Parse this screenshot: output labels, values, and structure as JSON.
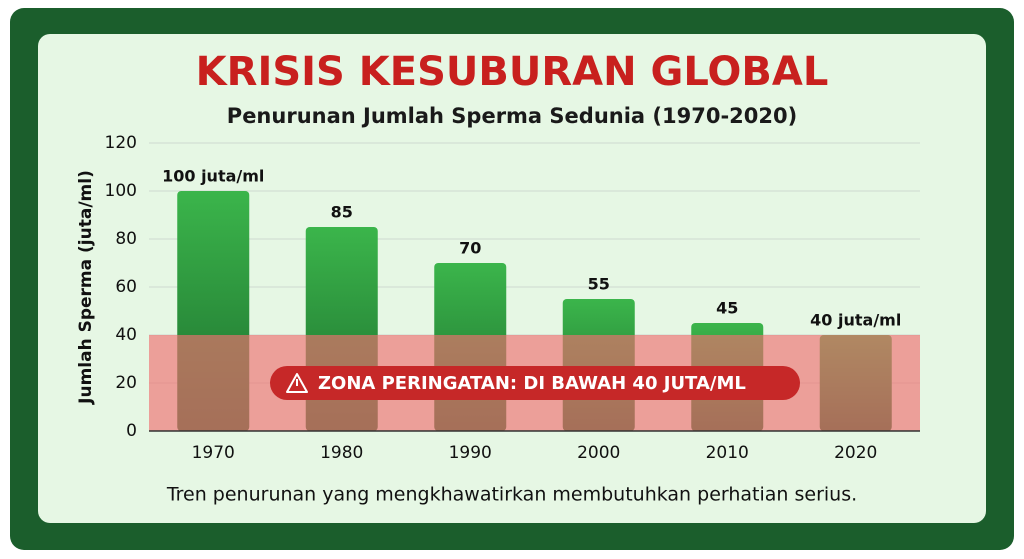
{
  "chart_data": {
    "type": "bar",
    "title": "KRISIS KESUBURAN GLOBAL",
    "subtitle": "Penurunan Jumlah Sperma Sedunia (1970-2020)",
    "y_label": "Jumlah Sperma (juta/ml)",
    "note": "Tren penurunan yang mengkhawatirkan membutuhkan perhatian serius.",
    "categories": [
      "1970",
      "1980",
      "1990",
      "2000",
      "2010",
      "2020"
    ],
    "values": [
      100,
      85,
      70,
      55,
      45,
      40
    ],
    "value_labels": [
      "100 juta/ml",
      "85",
      "70",
      "55",
      "45",
      "40 juta/ml"
    ],
    "color": "#3bb54b",
    "gradient_to": "#1d6e2e",
    "ylim": [
      0,
      120
    ],
    "yticks": [
      0,
      20,
      40,
      60,
      80,
      100,
      120
    ],
    "grid": true,
    "warning_zone": {
      "label": "ZONA PERINGATAN: DI BAWAH 40 JUTA/ML",
      "below": 40,
      "color": "#f07070"
    }
  }
}
